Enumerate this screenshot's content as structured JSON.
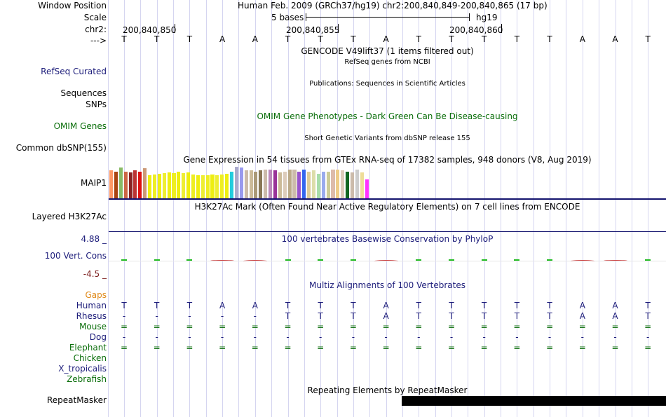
{
  "labels": {
    "window_position": "Window Position",
    "scale": "Scale",
    "chr": "chr2:",
    "strand": "--->",
    "refseq": "RefSeq Curated",
    "sequences": "Sequences",
    "snps": "SNPs",
    "omim": "OMIM Genes",
    "dbsnp": "Common dbSNP(155)",
    "maip1": "MAIP1",
    "h3k27ac": "Layered H3K27Ac",
    "phylop_max": "4.88 _",
    "cons": "100 Vert. Cons",
    "phylop_min": "-4.5 _",
    "gaps": "Gaps",
    "species": [
      "Human",
      "Rhesus",
      "Mouse",
      "Dog",
      "Elephant",
      "Chicken",
      "X_tropicalis",
      "Zebrafish"
    ],
    "repeatmasker": "RepeatMasker"
  },
  "header": {
    "position": "Human Feb. 2009 (GRCh37/hg19)   chr2:200,840,849-200,840,865 (17 bp)",
    "scale_text": "5 bases",
    "assembly": "hg19",
    "coords": [
      "200,840,850",
      "200,840,855",
      "200,840,860"
    ]
  },
  "sequence": [
    "T",
    "T",
    "T",
    "A",
    "A",
    "T",
    "T",
    "T",
    "A",
    "T",
    "T",
    "T",
    "T",
    "T",
    "A",
    "A",
    "T"
  ],
  "tracks": {
    "gencode": "GENCODE V49lift37 (1 items filtered out)",
    "refseq_desc": "RefSeq genes from NCBI",
    "publications": "Publications: Sequences in Scientific Articles",
    "omim_desc": "OMIM Gene Phenotypes - Dark Green Can Be Disease-causing",
    "dbsnp_desc": "Short Genetic Variants from dbSNP release 155",
    "gtex_desc": "Gene Expression in 54 tissues from GTEx RNA-seq of 17382 samples, 948 donors (V8, Aug 2019)",
    "h3k27ac_desc": "H3K27Ac Mark (Often Found Near Active Regulatory Elements) on 7 cell lines from ENCODE",
    "phylop_desc": "100 vertebrates Basewise Conservation by PhyloP",
    "multiz_desc": "Multiz Alignments of 100 Vertebrates",
    "repeat_desc": "Repeating Elements by RepeatMasker"
  },
  "alignments": {
    "human": [
      "T",
      "T",
      "T",
      "A",
      "A",
      "T",
      "T",
      "T",
      "A",
      "T",
      "T",
      "T",
      "T",
      "T",
      "A",
      "A",
      "T"
    ],
    "rhesus": [
      "-",
      "-",
      "-",
      "-",
      "-",
      "T",
      "T",
      "T",
      "A",
      "T",
      "T",
      "T",
      "T",
      "T",
      "A",
      "A",
      "T"
    ],
    "mouse": [
      "=",
      "=",
      "=",
      "=",
      "=",
      "=",
      "=",
      "=",
      "=",
      "=",
      "=",
      "=",
      "=",
      "=",
      "=",
      "=",
      "="
    ],
    "dog": [
      "-",
      "-",
      "-",
      "-",
      "-",
      "-",
      "-",
      "-",
      "-",
      "-",
      "-",
      "-",
      "-",
      "-",
      "-",
      "-",
      "-"
    ],
    "elephant": [
      "=",
      "=",
      "=",
      "=",
      "=",
      "=",
      "=",
      "=",
      "=",
      "=",
      "=",
      "=",
      "=",
      "=",
      "=",
      "=",
      "="
    ]
  },
  "gtex_bars": {
    "values": [
      0.88,
      0.85,
      0.98,
      0.85,
      0.82,
      0.88,
      0.85,
      0.95,
      0.73,
      0.76,
      0.78,
      0.8,
      0.82,
      0.8,
      0.85,
      0.8,
      0.82,
      0.76,
      0.73,
      0.73,
      0.73,
      0.76,
      0.73,
      0.76,
      0.78,
      0.85,
      1.0,
      0.98,
      0.88,
      0.88,
      0.85,
      0.88,
      0.92,
      0.92,
      0.88,
      0.82,
      0.85,
      0.92,
      0.92,
      0.85,
      0.92,
      0.85,
      0.88,
      0.78,
      0.85,
      0.85,
      0.9,
      0.92,
      0.88,
      0.85,
      0.82,
      0.92,
      0.82,
      0.6
    ],
    "colors": [
      "#ff9966",
      "#aa4411",
      "#88bb66",
      "#cc6644",
      "#882222",
      "#bb3333",
      "#dd1111",
      "#cc9977",
      "#eeee11",
      "#eeee22",
      "#eeee11",
      "#eeee33",
      "#eeee11",
      "#eeee22",
      "#eeee11",
      "#eeee33",
      "#eeee11",
      "#eeee22",
      "#eeee11",
      "#eeee33",
      "#eeee22",
      "#eeee11",
      "#eeee33",
      "#eeee22",
      "#eeee11",
      "#22ccdd",
      "#aaaacc",
      "#9999ee",
      "#ccbbaa",
      "#ccbb99",
      "#aa9977",
      "#887755",
      "#ccbbaa",
      "#bb88bb",
      "#993399",
      "#ccbb99",
      "#ddccbb",
      "#bbaa88",
      "#ccbbaa",
      "#9955cc",
      "#3366ee",
      "#ddcc99",
      "#ddddaa",
      "#aaddaa",
      "#99aaee",
      "#cccc99",
      "#ddbbaa",
      "#eecc88",
      "#ddccbb",
      "#116622",
      "#ccbbaa",
      "#cccccc",
      "#eedd99",
      "#ff33ff"
    ]
  },
  "phylop": {
    "values": [
      0.12,
      0.12,
      0.1,
      -0.35,
      -0.55,
      0.12,
      0.12,
      0.1,
      -0.4,
      0.12,
      0.12,
      0.12,
      0.12,
      0.15,
      -0.4,
      -0.35,
      0.12
    ]
  },
  "repeat": {
    "start_index": 9,
    "end_index": 17
  }
}
